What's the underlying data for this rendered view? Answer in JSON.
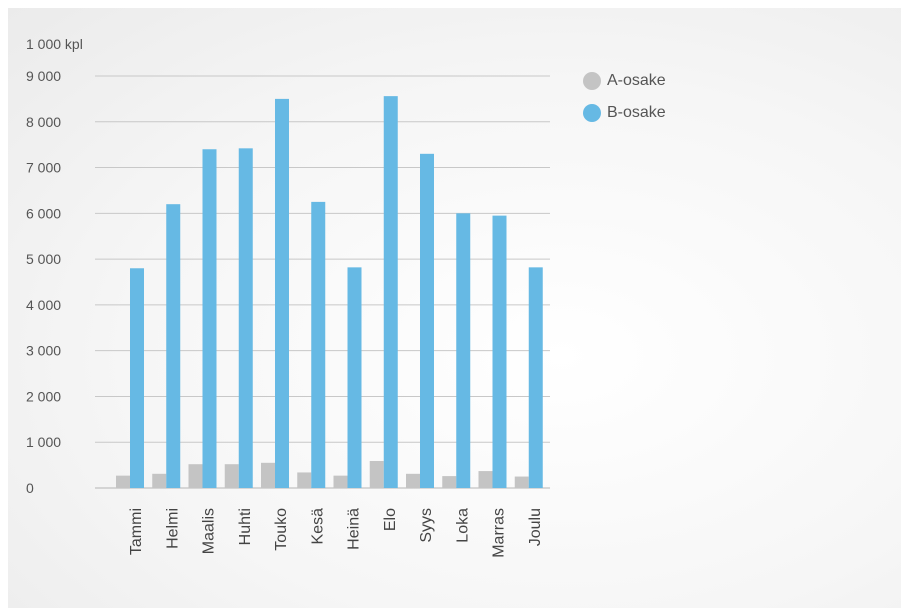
{
  "chart_data": {
    "type": "bar",
    "unit_label": "1 000 kpl",
    "categories": [
      "Tammi",
      "Helmi",
      "Maalis",
      "Huhti",
      "Touko",
      "Kesä",
      "Heinä",
      "Elo",
      "Syys",
      "Loka",
      "Marras",
      "Joulu"
    ],
    "series": [
      {
        "name": "A-osake",
        "color": "#c4c4c4",
        "values": [
          270,
          310,
          520,
          520,
          550,
          340,
          270,
          590,
          310,
          260,
          370,
          250
        ]
      },
      {
        "name": "B-osake",
        "color": "#66b9e4",
        "values": [
          4800,
          6200,
          7400,
          7420,
          8500,
          6250,
          4820,
          8560,
          7300,
          6000,
          5950,
          4820
        ]
      }
    ],
    "ylim": [
      0,
      9000
    ],
    "yticks": [
      {
        "value": 0,
        "label": "0"
      },
      {
        "value": 1000,
        "label": "1 000"
      },
      {
        "value": 2000,
        "label": "2 000"
      },
      {
        "value": 3000,
        "label": "3 000"
      },
      {
        "value": 4000,
        "label": "4 000"
      },
      {
        "value": 5000,
        "label": "5 000"
      },
      {
        "value": 6000,
        "label": "6 000"
      },
      {
        "value": 7000,
        "label": "7 000"
      },
      {
        "value": 8000,
        "label": "8 000"
      },
      {
        "value": 9000,
        "label": "9 000"
      }
    ],
    "grid": true,
    "legend_position": "top-right"
  }
}
